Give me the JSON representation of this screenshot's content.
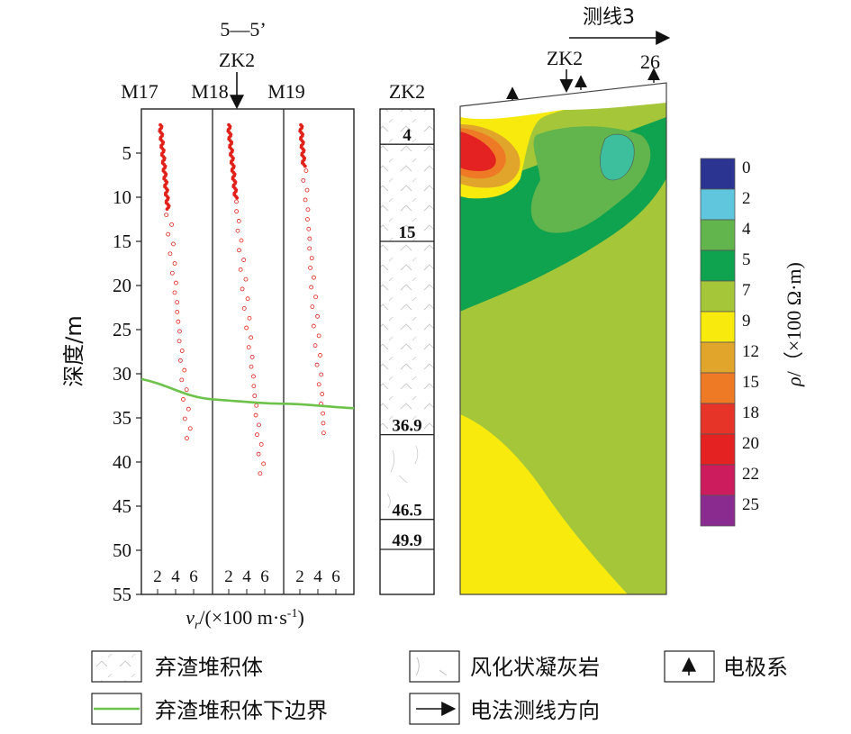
{
  "profile": {
    "section_label": "5—5’",
    "borehole_label": "ZK2",
    "columns": [
      "M17",
      "M18",
      "M19"
    ],
    "depth_axis": {
      "label": "深度/m",
      "ticks": [
        "5",
        "10",
        "15",
        "20",
        "25",
        "30",
        "35",
        "40",
        "45",
        "50",
        "55"
      ]
    },
    "x_ticks": [
      "2",
      "4",
      "6"
    ],
    "x_axis_label_parts": {
      "v": "v",
      "sub": "r",
      "mid": "/(×100 m·s",
      "sup": "-1",
      "end": ")"
    },
    "boundary_depths_m": [
      30.6,
      32.9,
      33.4,
      33.9
    ]
  },
  "borehole": {
    "title": "ZK2",
    "layer_depths": [
      "4",
      "15",
      "36.9",
      "46.5",
      "49.9"
    ]
  },
  "resistivity": {
    "line_label": "测线3",
    "borehole_label": "ZK2",
    "end_label": "26",
    "colorbar": {
      "values": [
        "0",
        "2",
        "4",
        "5",
        "7",
        "9",
        "12",
        "15",
        "18",
        "20",
        "22",
        "25"
      ],
      "colors": [
        "#2b3591",
        "#5fc6de",
        "#62b54c",
        "#0fa24f",
        "#a6c63a",
        "#f7ea0c",
        "#e1a52b",
        "#ee7a25",
        "#e73428",
        "#e42221",
        "#cc1c5e",
        "#8a2b8f"
      ],
      "axis_label_parts": {
        "rho": "ρ",
        "rest": "/（×100 Ω·m)"
      }
    }
  },
  "legend": {
    "items": [
      "弃渣堆积体",
      "风化状凝灰岩",
      "电极系",
      "弃渣堆积体下边界",
      "电法测线方向"
    ]
  },
  "colors": {
    "boundary": "#6cc24a",
    "points": "#e0221b"
  }
}
